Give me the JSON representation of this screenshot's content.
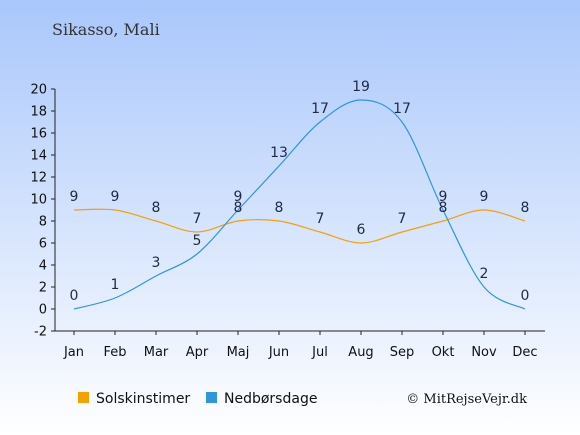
{
  "title": "Sikasso, Mali",
  "credit": "© MitRejseVejr.dk",
  "colors": {
    "sunshine": "#f5a100",
    "rain": "#2f96dc",
    "bg_top": "#a9c7fb",
    "bg_bottom": "#ffffff"
  },
  "chart_data": {
    "type": "line",
    "categories": [
      "Jan",
      "Feb",
      "Mar",
      "Apr",
      "Maj",
      "Jun",
      "Jul",
      "Aug",
      "Sep",
      "Okt",
      "Nov",
      "Dec"
    ],
    "ylim": [
      -2,
      20
    ],
    "yticks": [
      "20",
      "18",
      "16",
      "14",
      "12",
      "10",
      "8",
      "6",
      "4",
      "2",
      "0",
      "-2"
    ],
    "grid": false,
    "legend_position": "bottom-left",
    "series": [
      {
        "name": "Solskinstimer",
        "color": "#f5a100",
        "values": [
          9,
          9,
          8,
          7,
          8,
          8,
          7,
          6,
          7,
          8,
          9,
          8
        ],
        "labels": [
          "9",
          "9",
          "8",
          "7",
          "8",
          "8",
          "7",
          "6",
          "7",
          "8",
          "9",
          "8"
        ]
      },
      {
        "name": "Nedbørsdage",
        "color": "#2f96dc",
        "values": [
          0,
          1,
          3,
          5,
          9,
          13,
          17,
          19,
          17,
          9,
          2,
          0
        ],
        "labels": [
          "0",
          "1",
          "3",
          "5",
          "9",
          "13",
          "17",
          "19",
          "17",
          "9",
          "2",
          "0"
        ]
      }
    ]
  }
}
